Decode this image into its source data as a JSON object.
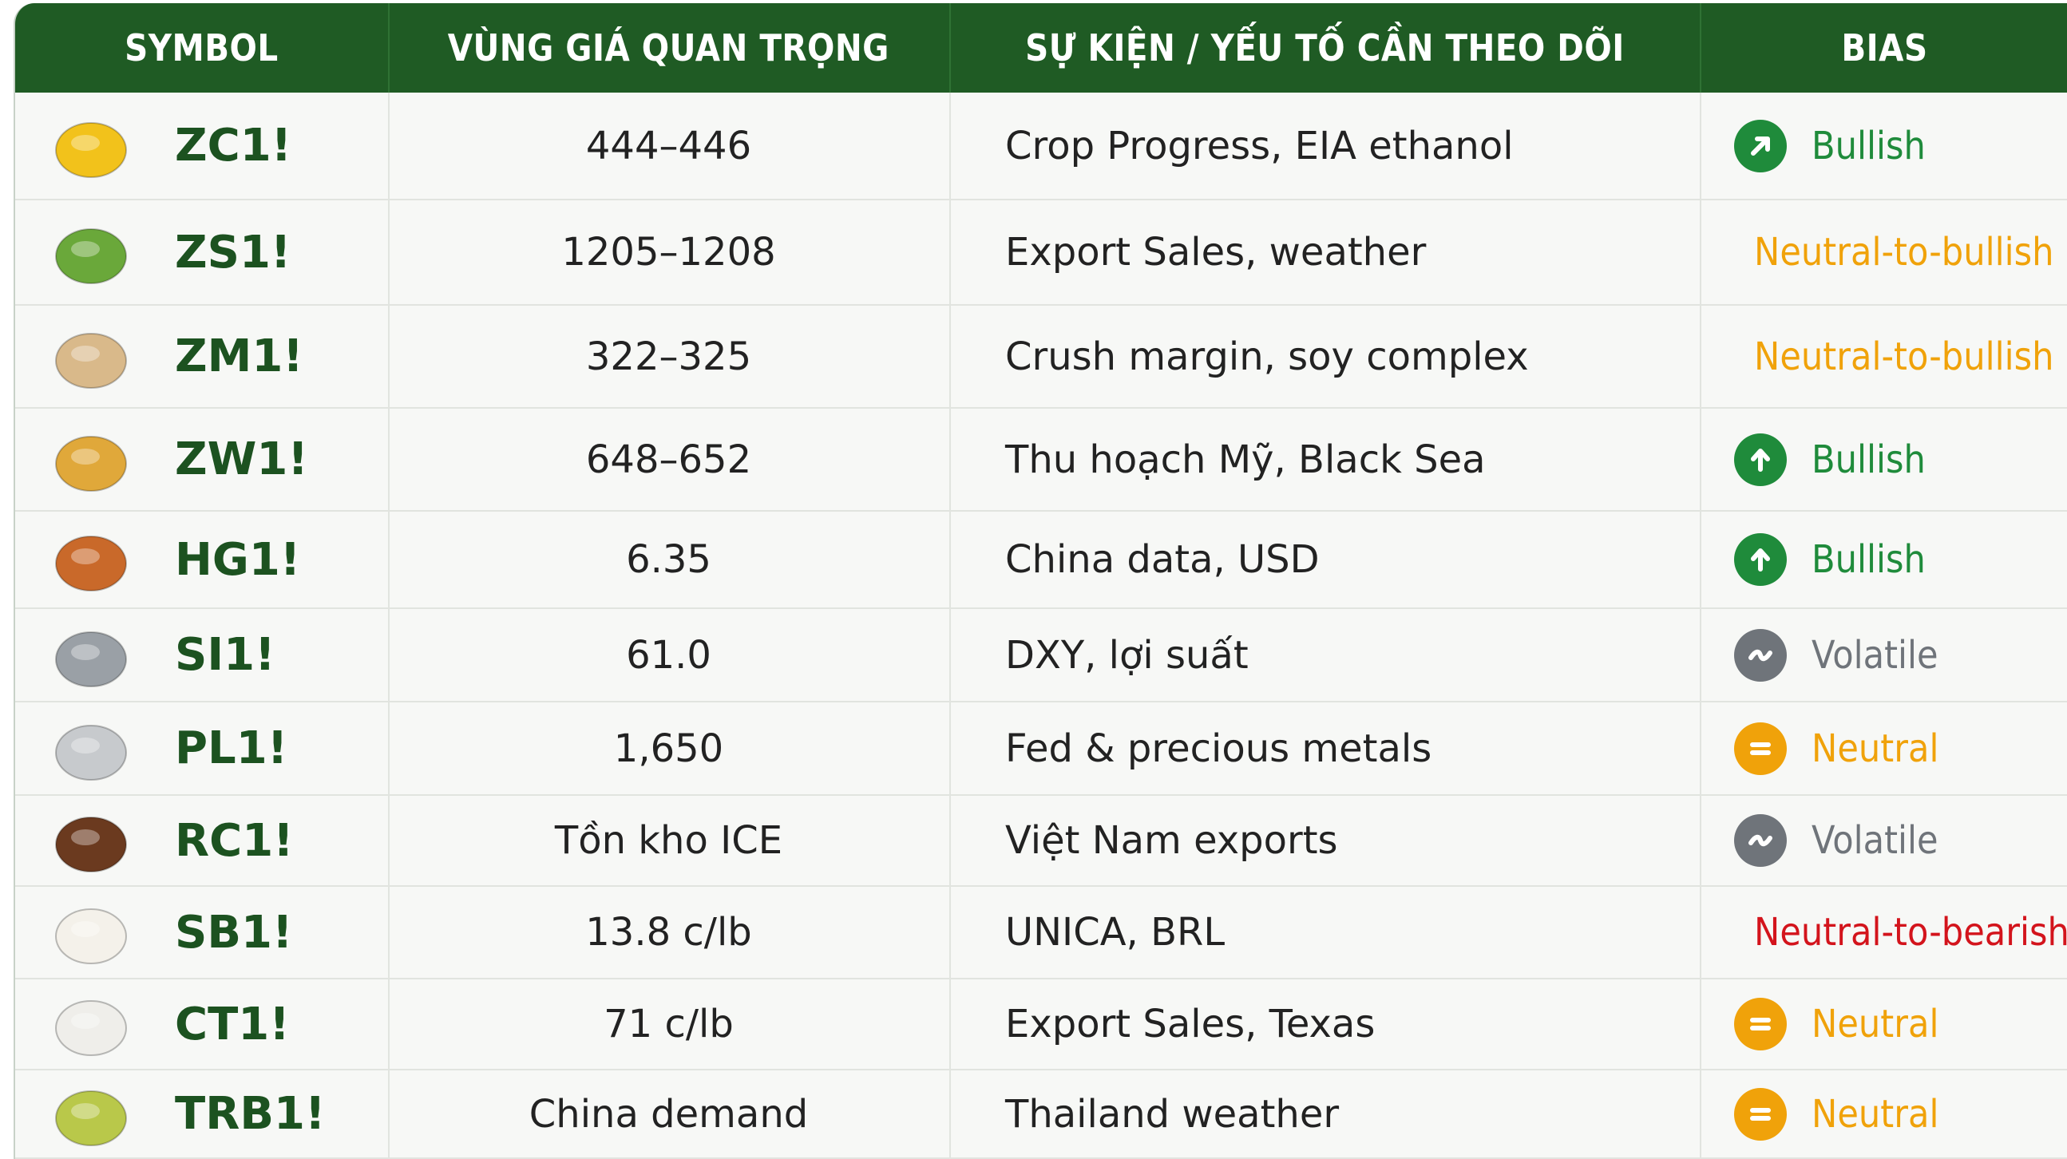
{
  "table": {
    "headers": [
      "SYMBOL",
      "VÙNG GIÁ QUAN TRỌNG",
      "SỰ KIỆN / YẾU TỐ CẦN THEO DÕI",
      "BIAS"
    ],
    "rows": [
      [
        "ZC1!",
        "444–446",
        "Crop Progress, EIA ethanol",
        "Bullish"
      ],
      [
        "ZS1!",
        "1205–1208",
        "Export Sales, weather",
        "Neutral-to-bullish"
      ],
      [
        "ZM1!",
        "322–325",
        "Crush margin, soy complex",
        "Neutral-to-bullish"
      ],
      [
        "ZW1!",
        "648–652",
        "Thu hoạch Mỹ, Black Sea",
        "Bullish"
      ],
      [
        "HG1!",
        "6.35",
        "China data, USD",
        "Bullish"
      ],
      [
        "SI1!",
        "61.0",
        "DXY, lợi suất",
        "Volatile"
      ],
      [
        "PL1!",
        "1,650",
        "Fed & precious metals",
        "Neutral"
      ],
      [
        "RC1!",
        "Tồn kho ICE",
        "Việt Nam exports",
        "Volatile"
      ],
      [
        "SB1!",
        "13.8 c/lb",
        "UNICA, BRL",
        "Neutral-to-bearish"
      ],
      [
        "CT1!",
        "71 c/lb",
        "Export Sales, Texas",
        "Neutral"
      ],
      [
        "TRB1!",
        "China demand",
        "Thailand weather",
        "Neutral"
      ]
    ],
    "bias_colors": [
      "#1f8b3b",
      "#f0a20a",
      "#f0a20a",
      "#1f8b3b",
      "#1f8b3b",
      "#6f747a",
      "#f0a20a",
      "#6f747a",
      "#d3141c",
      "#f0a20a",
      "#f0a20a"
    ]
  }
}
